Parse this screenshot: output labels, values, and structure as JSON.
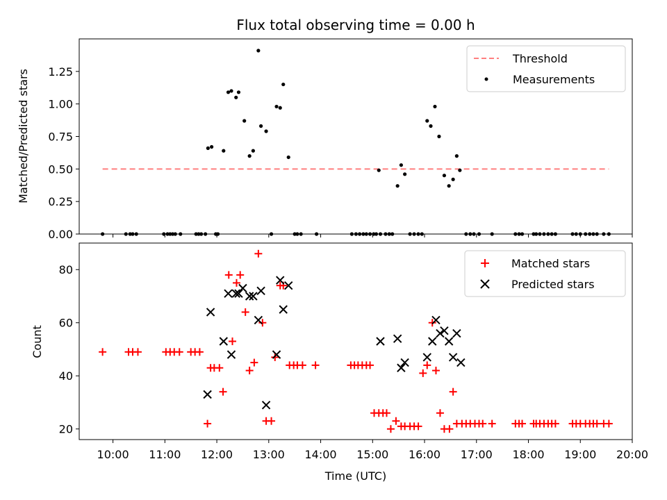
{
  "chart_data": [
    {
      "type": "line",
      "panel": "top",
      "title": "Flux total observing time = 0.00 h",
      "ylabel": "Matched/Predicted stars",
      "ylim": [
        0.0,
        1.5
      ],
      "yticks": [
        "0.00",
        "0.25",
        "0.50",
        "0.75",
        "1.00",
        "1.25"
      ],
      "legend_position": "top-right",
      "series": [
        {
          "name": "Threshold",
          "kind": "dashed-line",
          "color": "#ff7f7f",
          "x_hours": [
            9.8,
            19.55
          ],
          "y": [
            0.5,
            0.5
          ]
        },
        {
          "name": "Measurements",
          "kind": "scatter",
          "color": "#000000",
          "x_hours": [
            9.8,
            10.25,
            10.33,
            10.38,
            10.45,
            10.98,
            11.05,
            11.1,
            11.15,
            11.2,
            11.3,
            11.6,
            11.65,
            11.7,
            11.78,
            11.98,
            12.02,
            11.83,
            11.9,
            12.13,
            12.22,
            12.28,
            12.37,
            12.42,
            12.53,
            12.63,
            12.7,
            12.85,
            12.95,
            12.8,
            13.05,
            13.15,
            13.22,
            13.28,
            13.38,
            13.5,
            13.55,
            13.62,
            13.92,
            14.6,
            14.68,
            14.75,
            14.82,
            14.88,
            14.95,
            15.02,
            15.07,
            15.15,
            15.25,
            15.32,
            15.38,
            15.48,
            15.55,
            15.62,
            15.72,
            15.8,
            15.88,
            15.95,
            16.05,
            16.12,
            16.2,
            16.28,
            16.38,
            16.47,
            16.55,
            16.62,
            16.68,
            16.8,
            16.88,
            16.95,
            17.05,
            17.3,
            17.75,
            17.82,
            17.88,
            18.1,
            18.15,
            18.22,
            18.3,
            18.38,
            18.45,
            18.52,
            18.85,
            18.92,
            19.0,
            19.1,
            19.18,
            19.25,
            19.32,
            19.45,
            19.55,
            15.12
          ],
          "y": [
            0,
            0,
            0,
            0,
            0,
            0,
            0,
            0,
            0,
            0,
            0,
            0,
            0,
            0,
            0,
            0,
            0,
            0.66,
            0.67,
            0.64,
            1.09,
            1.1,
            1.05,
            1.09,
            0.87,
            0.6,
            0.64,
            0.83,
            0.79,
            1.41,
            0,
            0.98,
            0.97,
            1.15,
            0.59,
            0,
            0,
            0,
            0,
            0,
            0,
            0,
            0,
            0,
            0,
            0,
            0,
            0,
            0,
            0,
            0,
            0.37,
            0.53,
            0.46,
            0,
            0,
            0,
            0,
            0.87,
            0.83,
            0.98,
            0.75,
            0.45,
            0.37,
            0.42,
            0.6,
            0.49,
            0,
            0,
            0,
            0,
            0,
            0,
            0,
            0,
            0,
            0,
            0,
            0,
            0,
            0,
            0,
            0,
            0,
            0,
            0,
            0,
            0,
            0,
            0,
            0,
            0.49
          ]
        }
      ]
    },
    {
      "type": "scatter",
      "panel": "bottom",
      "xlabel": "Time (UTC)",
      "ylabel": "Count",
      "xlim_hours": [
        9.35,
        20.0
      ],
      "ylim": [
        16,
        90
      ],
      "xticks": [
        "10:00",
        "11:00",
        "12:00",
        "13:00",
        "14:00",
        "15:00",
        "16:00",
        "17:00",
        "18:00",
        "19:00",
        "20:00"
      ],
      "yticks": [
        "20",
        "40",
        "60",
        "80"
      ],
      "legend_position": "top-right",
      "series": [
        {
          "name": "Matched stars",
          "marker": "plus",
          "color": "#ff0000",
          "x_hours": [
            9.8,
            10.3,
            10.38,
            10.48,
            11.02,
            11.1,
            11.18,
            11.28,
            11.5,
            11.58,
            11.67,
            11.82,
            11.88,
            11.95,
            12.05,
            12.12,
            12.23,
            12.3,
            12.38,
            12.45,
            12.55,
            12.63,
            12.72,
            12.8,
            12.88,
            12.95,
            13.05,
            13.12,
            13.22,
            13.28,
            13.4,
            13.48,
            13.55,
            13.65,
            13.9,
            14.58,
            14.65,
            14.72,
            14.8,
            14.88,
            14.95,
            15.03,
            15.12,
            15.2,
            15.27,
            15.35,
            15.45,
            15.55,
            15.62,
            15.72,
            15.8,
            15.88,
            15.97,
            16.05,
            16.15,
            16.22,
            16.3,
            16.38,
            16.48,
            16.55,
            16.62,
            16.72,
            16.8,
            16.88,
            16.97,
            17.05,
            17.12,
            17.3,
            17.75,
            17.82,
            17.88,
            18.1,
            18.15,
            18.22,
            18.3,
            18.38,
            18.45,
            18.52,
            18.85,
            18.92,
            19.0,
            19.1,
            19.18,
            19.25,
            19.32,
            19.45,
            19.55
          ],
          "y": [
            49,
            49,
            49,
            49,
            49,
            49,
            49,
            49,
            49,
            49,
            49,
            22,
            43,
            43,
            43,
            34,
            78,
            53,
            75,
            78,
            64,
            42,
            45,
            86,
            60,
            23,
            23,
            47,
            74,
            74,
            44,
            44,
            44,
            44,
            44,
            44,
            44,
            44,
            44,
            44,
            44,
            26,
            26,
            26,
            26,
            20,
            23,
            21,
            21,
            21,
            21,
            21,
            41,
            44,
            60,
            42,
            26,
            20,
            20,
            34,
            22,
            22,
            22,
            22,
            22,
            22,
            22,
            22,
            22,
            22,
            22,
            22,
            22,
            22,
            22,
            22,
            22,
            22,
            22,
            22,
            22,
            22,
            22,
            22,
            22,
            22,
            22
          ]
        },
        {
          "name": "Predicted stars",
          "marker": "x",
          "color": "#000000",
          "x_hours": [
            11.82,
            11.88,
            12.13,
            12.22,
            12.28,
            12.37,
            12.42,
            12.5,
            12.63,
            12.7,
            12.8,
            12.85,
            12.95,
            13.15,
            13.22,
            13.28,
            13.38,
            15.15,
            15.48,
            15.55,
            15.62,
            16.05,
            16.15,
            16.22,
            16.3,
            16.38,
            16.47,
            16.55,
            16.62,
            16.7
          ],
          "y": [
            33,
            64,
            53,
            71,
            48,
            71,
            71,
            73,
            70,
            70,
            61,
            72,
            29,
            48,
            76,
            65,
            74,
            53,
            54,
            43,
            45,
            47,
            53,
            61,
            56,
            57,
            53,
            47,
            56,
            45
          ]
        }
      ]
    }
  ]
}
